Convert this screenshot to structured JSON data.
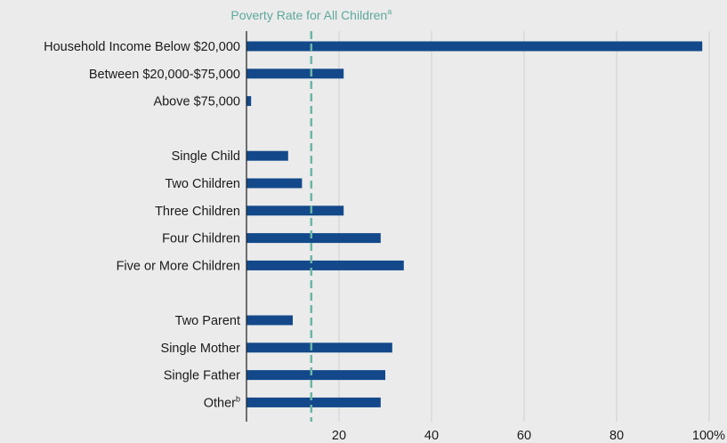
{
  "chart_data": {
    "type": "bar",
    "orientation": "horizontal",
    "categories": [
      "Household Income Below $20,000",
      "Between $20,000-$75,000",
      "Above $75,000",
      "",
      "Single Child",
      "Two Children",
      "Three Children",
      "Four Children",
      "Five or More Children",
      "",
      "Two Parent",
      "Single Mother",
      "Single Father",
      "Other"
    ],
    "category_superscripts": [
      "",
      "",
      "",
      "",
      "",
      "",
      "",
      "",
      "",
      "",
      "",
      "",
      "",
      "b"
    ],
    "values": [
      98.5,
      21,
      1,
      null,
      9,
      12,
      21,
      29,
      34,
      null,
      10,
      31.5,
      30,
      29
    ],
    "xlim": [
      0,
      100
    ],
    "xticks": [
      20,
      40,
      60,
      80,
      100
    ],
    "xtick_labels": [
      "20",
      "40",
      "60",
      "80",
      "100%"
    ],
    "grid": "vertical",
    "reference_line": {
      "value": 14,
      "label": "Poverty Rate for All Children",
      "superscript": "a",
      "style": "dashed"
    },
    "colors": {
      "bar": "#13498a",
      "reference_line": "#6cb5a8",
      "grid": "#cfcfcf",
      "background": "#ebebeb"
    }
  }
}
